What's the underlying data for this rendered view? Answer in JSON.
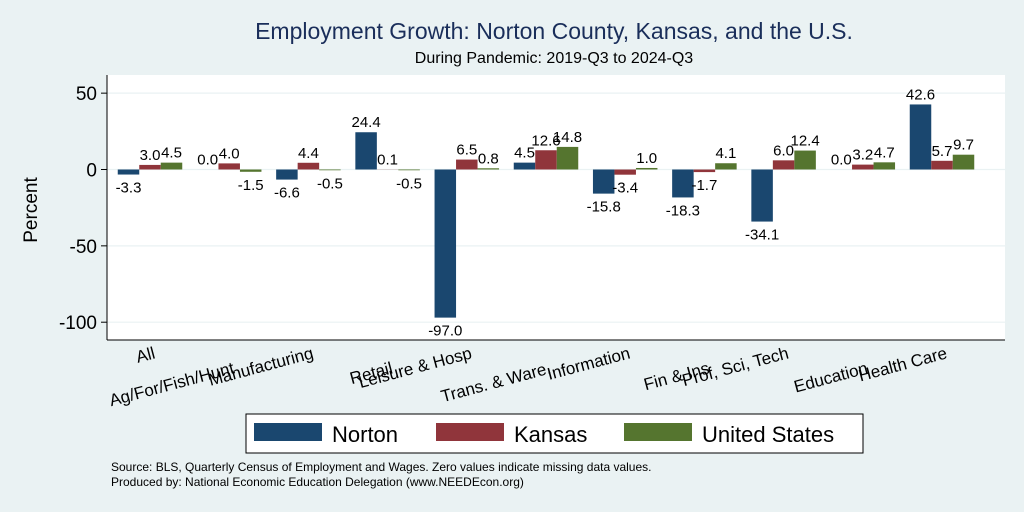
{
  "chart_data": {
    "type": "bar",
    "title": "Employment Growth: Norton County, Kansas, and the U.S.",
    "subtitle": "During Pandemic: 2019-Q3 to 2024-Q3",
    "xlabel": "",
    "ylabel": "Percent",
    "ylim": [
      -110,
      62
    ],
    "yticks": [
      50,
      0,
      -50,
      -100
    ],
    "grid": true,
    "legend_position": "bottom",
    "categories": [
      "All",
      "Ag/For/Fish/Hunt",
      "Manufacturing",
      "Retail",
      "Leisure & Hosp",
      "Trans. & Ware.",
      "Information",
      "Fin & Ins",
      "Prof, Sci, Tech",
      "Education",
      "Health Care"
    ],
    "series": [
      {
        "name": "Norton",
        "color": "#1a476f",
        "values": [
          -3.3,
          0.0,
          -6.6,
          24.4,
          -97.0,
          4.5,
          -15.8,
          -18.3,
          -34.1,
          0.0,
          42.6
        ]
      },
      {
        "name": "Kansas",
        "color": "#90353b",
        "values": [
          3.0,
          4.0,
          4.4,
          0.1,
          6.5,
          12.6,
          -3.4,
          -1.7,
          6.0,
          3.2,
          5.7
        ]
      },
      {
        "name": "United States",
        "color": "#55752f",
        "values": [
          4.5,
          -1.5,
          -0.5,
          -0.5,
          0.8,
          14.8,
          1.0,
          4.1,
          12.4,
          4.7,
          9.7
        ]
      }
    ]
  },
  "footer": {
    "source": "Source: BLS, Quarterly Census of Employment and Wages. Zero values indicate missing data values.",
    "produced": "Produced by: National Economic Education Delegation (www.NEEDEcon.org)"
  }
}
